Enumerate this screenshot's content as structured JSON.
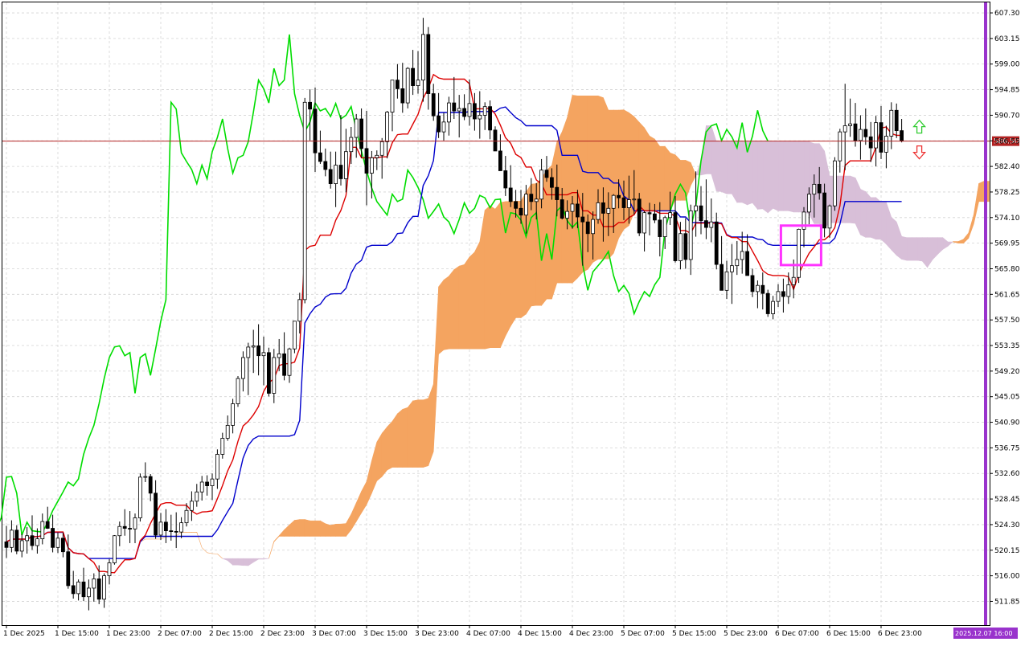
{
  "chart_data": {
    "type": "candlestick",
    "indicator": "Ichimoku Kinko Hyo",
    "grid": true,
    "ylim": [
      508.0,
      609.0
    ],
    "price_ticks": [
      "607.30",
      "603.15",
      "599.00",
      "594.85",
      "590.70",
      "586.55",
      "582.40",
      "578.25",
      "574.10",
      "569.95",
      "565.80",
      "561.65",
      "557.50",
      "553.35",
      "549.20",
      "545.05",
      "540.90",
      "536.75",
      "532.60",
      "528.45",
      "524.30",
      "520.15",
      "516.00",
      "511.85"
    ],
    "time_labels": [
      "1 Dec 2025",
      "1 Dec 15:00",
      "1 Dec 23:00",
      "2 Dec 07:00",
      "2 Dec 15:00",
      "2 Dec 23:00",
      "3 Dec 07:00",
      "3 Dec 15:00",
      "3 Dec 23:00",
      "4 Dec 07:00",
      "4 Dec 15:00",
      "4 Dec 23:00",
      "5 Dec 07:00",
      "5 Dec 15:00",
      "5 Dec 23:00",
      "6 Dec 07:00",
      "6 Dec 15:00",
      "6 Dec 23:00"
    ],
    "current_price": "586.50",
    "period_separator_label": "2025.12.07 16:00",
    "colors": {
      "bull_candle": "#ffffff",
      "bear_candle": "#000000",
      "tenkan": "#dd0000",
      "kijun": "#0000cc",
      "chikou": "#00dd00",
      "kumo_bull": "#f4a460",
      "kumo_bear": "#d8bfd8",
      "price_line": "#b22222",
      "separator": "#9933cc",
      "highlight_box": "#ff33ff",
      "arrow_up": "#33cc33",
      "arrow_down": "#ee3333"
    },
    "candles_ohlc": [
      [
        521.5,
        524.1,
        518.9,
        520.6
      ],
      [
        520.6,
        525.0,
        519.8,
        523.4
      ],
      [
        523.4,
        524.2,
        519.5,
        520.0
      ],
      [
        520.0,
        522.8,
        519.0,
        521.7
      ],
      [
        521.7,
        523.9,
        519.6,
        522.5
      ],
      [
        522.5,
        525.8,
        520.2,
        520.9
      ],
      [
        520.9,
        523.7,
        519.6,
        522.0
      ],
      [
        522.0,
        526.1,
        521.1,
        524.8
      ],
      [
        524.8,
        527.2,
        523.6,
        523.7
      ],
      [
        523.7,
        525.9,
        519.8,
        520.6
      ],
      [
        520.6,
        523.0,
        519.7,
        522.1
      ],
      [
        522.1,
        523.0,
        519.0,
        519.9
      ],
      [
        519.9,
        522.7,
        513.9,
        514.4
      ],
      [
        514.4,
        516.8,
        512.3,
        513.1
      ],
      [
        513.1,
        515.4,
        512.0,
        515.0
      ],
      [
        515.0,
        517.3,
        511.9,
        512.6
      ],
      [
        512.6,
        515.4,
        510.4,
        514.0
      ],
      [
        514.0,
        516.4,
        511.8,
        515.5
      ],
      [
        515.5,
        517.7,
        511.4,
        512.2
      ],
      [
        512.2,
        516.4,
        510.8,
        516.0
      ],
      [
        516.0,
        518.7,
        514.6,
        518.1
      ],
      [
        518.1,
        522.6,
        517.8,
        522.5
      ],
      [
        522.5,
        524.8,
        520.8,
        524.0
      ],
      [
        524.0,
        526.8,
        522.5,
        523.7
      ],
      [
        523.7,
        526.5,
        521.3,
        523.6
      ],
      [
        523.6,
        526.1,
        521.3,
        525.4
      ],
      [
        525.4,
        532.6,
        524.8,
        532.0
      ],
      [
        532.0,
        534.4,
        531.2,
        532.1
      ],
      [
        532.1,
        532.5,
        528.1,
        529.4
      ],
      [
        529.4,
        531.5,
        522.0,
        522.6
      ],
      [
        522.6,
        526.2,
        521.8,
        524.7
      ],
      [
        524.7,
        526.8,
        521.3,
        523.3
      ],
      [
        523.3,
        525.9,
        521.7,
        523.2
      ],
      [
        523.2,
        526.3,
        520.5,
        523.1
      ],
      [
        523.1,
        525.5,
        522.1,
        524.6
      ],
      [
        524.6,
        527.8,
        524.0,
        526.6
      ],
      [
        526.6,
        529.7,
        524.9,
        528.1
      ],
      [
        528.1,
        530.9,
        527.2,
        529.6
      ],
      [
        529.6,
        532.2,
        528.2,
        531.2
      ],
      [
        531.2,
        532.3,
        529.0,
        530.6
      ],
      [
        530.6,
        532.6,
        528.3,
        531.7
      ],
      [
        531.7,
        536.5,
        530.1,
        535.7
      ],
      [
        535.7,
        539.2,
        535.0,
        538.3
      ],
      [
        538.3,
        542.0,
        537.9,
        540.4
      ],
      [
        540.4,
        544.7,
        539.1,
        543.9
      ],
      [
        543.9,
        548.4,
        543.4,
        548.0
      ],
      [
        548.0,
        552.4,
        545.9,
        551.4
      ],
      [
        551.4,
        553.8,
        545.3,
        553.1
      ],
      [
        553.1,
        555.9,
        548.9,
        553.3
      ],
      [
        553.3,
        556.8,
        548.5,
        551.7
      ],
      [
        551.7,
        554.8,
        546.9,
        552.2
      ],
      [
        552.2,
        553.0,
        545.1,
        545.6
      ],
      [
        545.6,
        552.8,
        544.0,
        551.4
      ],
      [
        551.4,
        554.4,
        549.2,
        552.0
      ],
      [
        552.0,
        555.5,
        547.7,
        548.5
      ],
      [
        548.5,
        553.0,
        547.3,
        552.8
      ],
      [
        552.8,
        557.3,
        552.1,
        557.3
      ],
      [
        557.3,
        561.9,
        555.3,
        560.8
      ],
      [
        560.8,
        593.5,
        560.2,
        592.8
      ],
      [
        592.8,
        594.9,
        586.6,
        591.7
      ],
      [
        591.7,
        595.2,
        581.5,
        584.6
      ],
      [
        584.6,
        588.2,
        582.8,
        583.2
      ],
      [
        583.2,
        585.3,
        580.8,
        581.9
      ],
      [
        581.9,
        584.8,
        578.8,
        579.6
      ],
      [
        579.6,
        584.8,
        575.8,
        582.6
      ],
      [
        582.6,
        590.7,
        579.3,
        580.4
      ],
      [
        580.4,
        588.5,
        578.2,
        584.8
      ],
      [
        584.8,
        588.8,
        582.8,
        587.1
      ],
      [
        587.1,
        590.9,
        583.8,
        590.1
      ],
      [
        590.1,
        591.8,
        583.8,
        585.3
      ],
      [
        585.3,
        591.4,
        576.1,
        581.3
      ],
      [
        581.3,
        584.9,
        577.2,
        583.8
      ],
      [
        583.8,
        585.0,
        581.8,
        584.2
      ],
      [
        584.2,
        587.0,
        580.4,
        586.4
      ],
      [
        586.4,
        591.4,
        583.7,
        591.2
      ],
      [
        591.2,
        596.4,
        588.1,
        596.4
      ],
      [
        596.4,
        599.0,
        593.4,
        595.0
      ],
      [
        595.0,
        599.2,
        591.1,
        592.7
      ],
      [
        592.7,
        598.5,
        591.8,
        598.3
      ],
      [
        598.3,
        601.3,
        594.0,
        595.5
      ],
      [
        595.5,
        601.1,
        594.2,
        596.4
      ],
      [
        596.4,
        606.5,
        592.9,
        603.8
      ],
      [
        603.8,
        605.0,
        591.6,
        594.2
      ],
      [
        594.2,
        595.8,
        589.8,
        590.6
      ],
      [
        590.6,
        594.3,
        587.0,
        588.0
      ],
      [
        588.0,
        591.1,
        586.6,
        589.6
      ],
      [
        589.6,
        593.7,
        587.4,
        592.7
      ],
      [
        592.7,
        596.9,
        590.1,
        591.4
      ],
      [
        591.4,
        594.0,
        587.1,
        591.8
      ],
      [
        591.8,
        594.1,
        589.9,
        590.5
      ],
      [
        590.5,
        596.5,
        589.0,
        592.6
      ],
      [
        592.6,
        594.3,
        588.2,
        590.1
      ],
      [
        590.1,
        594.6,
        586.9,
        590.7
      ],
      [
        590.7,
        592.8,
        588.3,
        592.1
      ],
      [
        592.1,
        593.1,
        586.8,
        588.3
      ],
      [
        588.3,
        588.9,
        584.9,
        584.9
      ],
      [
        584.9,
        587.6,
        581.7,
        581.7
      ],
      [
        581.7,
        584.1,
        577.6,
        578.9
      ],
      [
        578.9,
        582.6,
        575.8,
        576.7
      ],
      [
        576.7,
        578.6,
        574.1,
        575.6
      ],
      [
        575.6,
        578.6,
        573.1,
        574.5
      ],
      [
        574.5,
        579.4,
        571.5,
        577.9
      ],
      [
        577.9,
        580.5,
        575.3,
        576.7
      ],
      [
        576.7,
        579.7,
        573.8,
        577.1
      ],
      [
        577.1,
        583.6,
        575.6,
        581.8
      ],
      [
        581.8,
        584.1,
        579.9,
        580.6
      ],
      [
        580.6,
        582.1,
        577.0,
        579.0
      ],
      [
        579.0,
        582.7,
        574.3,
        577.0
      ],
      [
        577.0,
        578.9,
        573.8,
        574.0
      ],
      [
        574.0,
        576.9,
        572.2,
        575.1
      ],
      [
        575.1,
        577.6,
        572.3,
        576.3
      ],
      [
        576.3,
        578.6,
        572.4,
        574.2
      ],
      [
        574.2,
        578.1,
        566.3,
        573.4
      ],
      [
        573.4,
        574.6,
        568.5,
        571.5
      ],
      [
        571.5,
        575.1,
        567.3,
        573.8
      ],
      [
        573.8,
        578.7,
        573.1,
        576.5
      ],
      [
        576.5,
        579.0,
        570.2,
        574.8
      ],
      [
        574.8,
        578.2,
        571.1,
        575.6
      ],
      [
        575.6,
        577.9,
        571.6,
        577.7
      ],
      [
        577.7,
        580.3,
        575.6,
        577.3
      ],
      [
        577.3,
        580.1,
        573.7,
        575.7
      ],
      [
        575.7,
        580.9,
        573.1,
        577.0
      ],
      [
        577.0,
        581.8,
        574.6,
        577.1
      ],
      [
        577.1,
        578.1,
        571.1,
        571.6
      ],
      [
        571.6,
        575.2,
        568.6,
        574.9
      ],
      [
        574.9,
        576.5,
        571.2,
        574.7
      ],
      [
        574.7,
        576.3,
        573.2,
        573.7
      ],
      [
        573.7,
        576.6,
        567.8,
        571.0
      ],
      [
        571.0,
        574.4,
        569.0,
        574.1
      ],
      [
        574.1,
        578.3,
        572.9,
        574.9
      ],
      [
        574.9,
        577.6,
        566.8,
        567.1
      ],
      [
        567.1,
        573.4,
        565.7,
        571.5
      ],
      [
        571.5,
        574.0,
        565.8,
        567.3
      ],
      [
        567.3,
        576.2,
        564.8,
        575.2
      ],
      [
        575.2,
        581.6,
        571.0,
        576.0
      ],
      [
        576.0,
        579.2,
        571.4,
        573.6
      ],
      [
        573.6,
        580.3,
        570.6,
        572.5
      ],
      [
        572.5,
        577.2,
        570.1,
        573.4
      ],
      [
        573.4,
        574.9,
        565.7,
        566.5
      ],
      [
        566.5,
        571.1,
        564.6,
        562.3
      ],
      [
        562.3,
        567.1,
        560.9,
        565.3
      ],
      [
        565.3,
        569.8,
        560.1,
        566.3
      ],
      [
        566.3,
        570.3,
        564.8,
        567.3
      ],
      [
        567.3,
        571.8,
        565.0,
        568.6
      ],
      [
        568.6,
        571.4,
        566.2,
        564.7
      ],
      [
        564.7,
        565.8,
        561.2,
        562.1
      ],
      [
        562.1,
        563.9,
        559.4,
        563.1
      ],
      [
        563.1,
        565.2,
        559.2,
        561.8
      ],
      [
        561.8,
        562.4,
        558.0,
        558.5
      ],
      [
        558.5,
        561.4,
        557.6,
        560.5
      ],
      [
        560.5,
        563.3,
        559.6,
        562.1
      ],
      [
        562.1,
        564.2,
        558.7,
        561.3
      ],
      [
        561.3,
        565.2,
        560.1,
        563.2
      ],
      [
        563.2,
        567.3,
        561.0,
        564.4
      ],
      [
        564.4,
        572.3,
        563.5,
        572.2
      ],
      [
        572.2,
        575.8,
        569.3,
        575.0
      ],
      [
        575.0,
        579.0,
        573.0,
        577.9
      ],
      [
        577.9,
        581.1,
        574.1,
        579.5
      ],
      [
        579.5,
        582.3,
        577.0,
        578.1
      ],
      [
        578.1,
        579.6,
        570.9,
        572.4
      ],
      [
        572.4,
        576.2,
        570.8,
        576.0
      ],
      [
        576.0,
        583.9,
        575.2,
        583.3
      ],
      [
        583.3,
        588.5,
        581.4,
        588.0
      ],
      [
        588.0,
        595.8,
        581.8,
        589.0
      ],
      [
        589.0,
        593.4,
        587.2,
        589.3
      ],
      [
        589.3,
        592.7,
        585.6,
        586.6
      ],
      [
        586.6,
        590.7,
        583.5,
        588.4
      ],
      [
        588.4,
        591.8,
        585.9,
        587.2
      ],
      [
        587.2,
        589.6,
        583.1,
        585.4
      ],
      [
        585.4,
        590.6,
        582.4,
        589.5
      ],
      [
        589.5,
        592.2,
        583.6,
        584.7
      ],
      [
        584.7,
        589.0,
        582.1,
        587.3
      ],
      [
        587.3,
        592.8,
        585.2,
        591.5
      ],
      [
        591.5,
        592.6,
        587.0,
        588.2
      ],
      [
        588.2,
        590.1,
        586.3,
        586.5
      ]
    ]
  }
}
